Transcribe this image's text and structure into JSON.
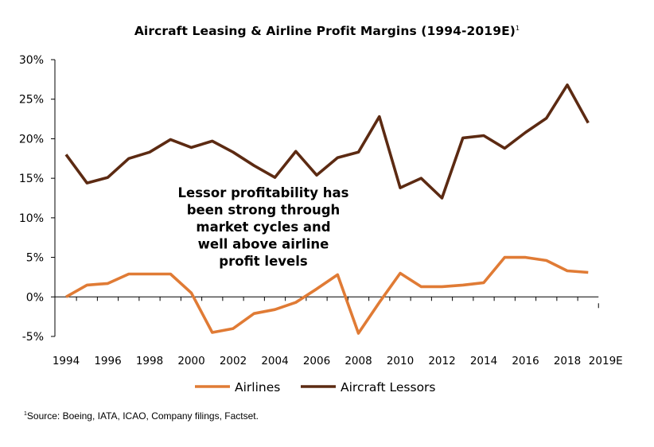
{
  "chart_data": {
    "type": "line",
    "title": "Aircraft Leasing & Airline Profit Margins (1994-2019E)",
    "title_footnote_mark": "1",
    "annotation": "Lessor profitability has been strong through market cycles and well above airline profit levels",
    "annotation_lines": [
      "Lessor profitability has",
      "been strong through",
      "market cycles and",
      "well above airline",
      "profit levels"
    ],
    "x": [
      "1994",
      "1995",
      "1996",
      "1997",
      "1998",
      "1999",
      "2000",
      "2001",
      "2002",
      "2003",
      "2004",
      "2005",
      "2006",
      "2007",
      "2008",
      "2009",
      "2010",
      "2011",
      "2012",
      "2013",
      "2014",
      "2015",
      "2016",
      "2017",
      "2018",
      "2019E"
    ],
    "x_tick_labels": [
      "1994",
      "1996",
      "1998",
      "2000",
      "2002",
      "2004",
      "2006",
      "2008",
      "2010",
      "2012",
      "2014",
      "2016",
      "2018",
      "2019E"
    ],
    "y_tick_labels": [
      "30%",
      "25%",
      "20%",
      "15%",
      "10%",
      "5%",
      "0%",
      "-5%"
    ],
    "ylim": [
      -5,
      30
    ],
    "y_unit": "%",
    "grid": false,
    "legend_position": "bottom",
    "series": [
      {
        "name": "Airlines",
        "color": "#E07B35",
        "values": [
          0.0,
          1.5,
          1.7,
          2.9,
          2.9,
          2.9,
          0.5,
          -4.5,
          -4.0,
          -2.1,
          -1.6,
          -0.7,
          1.0,
          2.8,
          -4.6,
          -0.7,
          3.0,
          1.3,
          1.3,
          1.5,
          1.8,
          5.0,
          5.0,
          4.6,
          3.3,
          3.1
        ]
      },
      {
        "name": "Aircraft Lessors",
        "color": "#5C2A12",
        "values": [
          18.0,
          14.4,
          15.1,
          17.5,
          18.3,
          19.9,
          18.9,
          19.7,
          18.3,
          16.6,
          15.1,
          18.4,
          15.4,
          17.6,
          18.3,
          22.8,
          13.8,
          15.0,
          12.5,
          20.1,
          20.4,
          18.8,
          20.8,
          22.6,
          26.8,
          22.0
        ]
      }
    ]
  },
  "footnote": {
    "mark": "1",
    "text": "Source: Boeing, IATA, ICAO, Company filings, Factset."
  }
}
